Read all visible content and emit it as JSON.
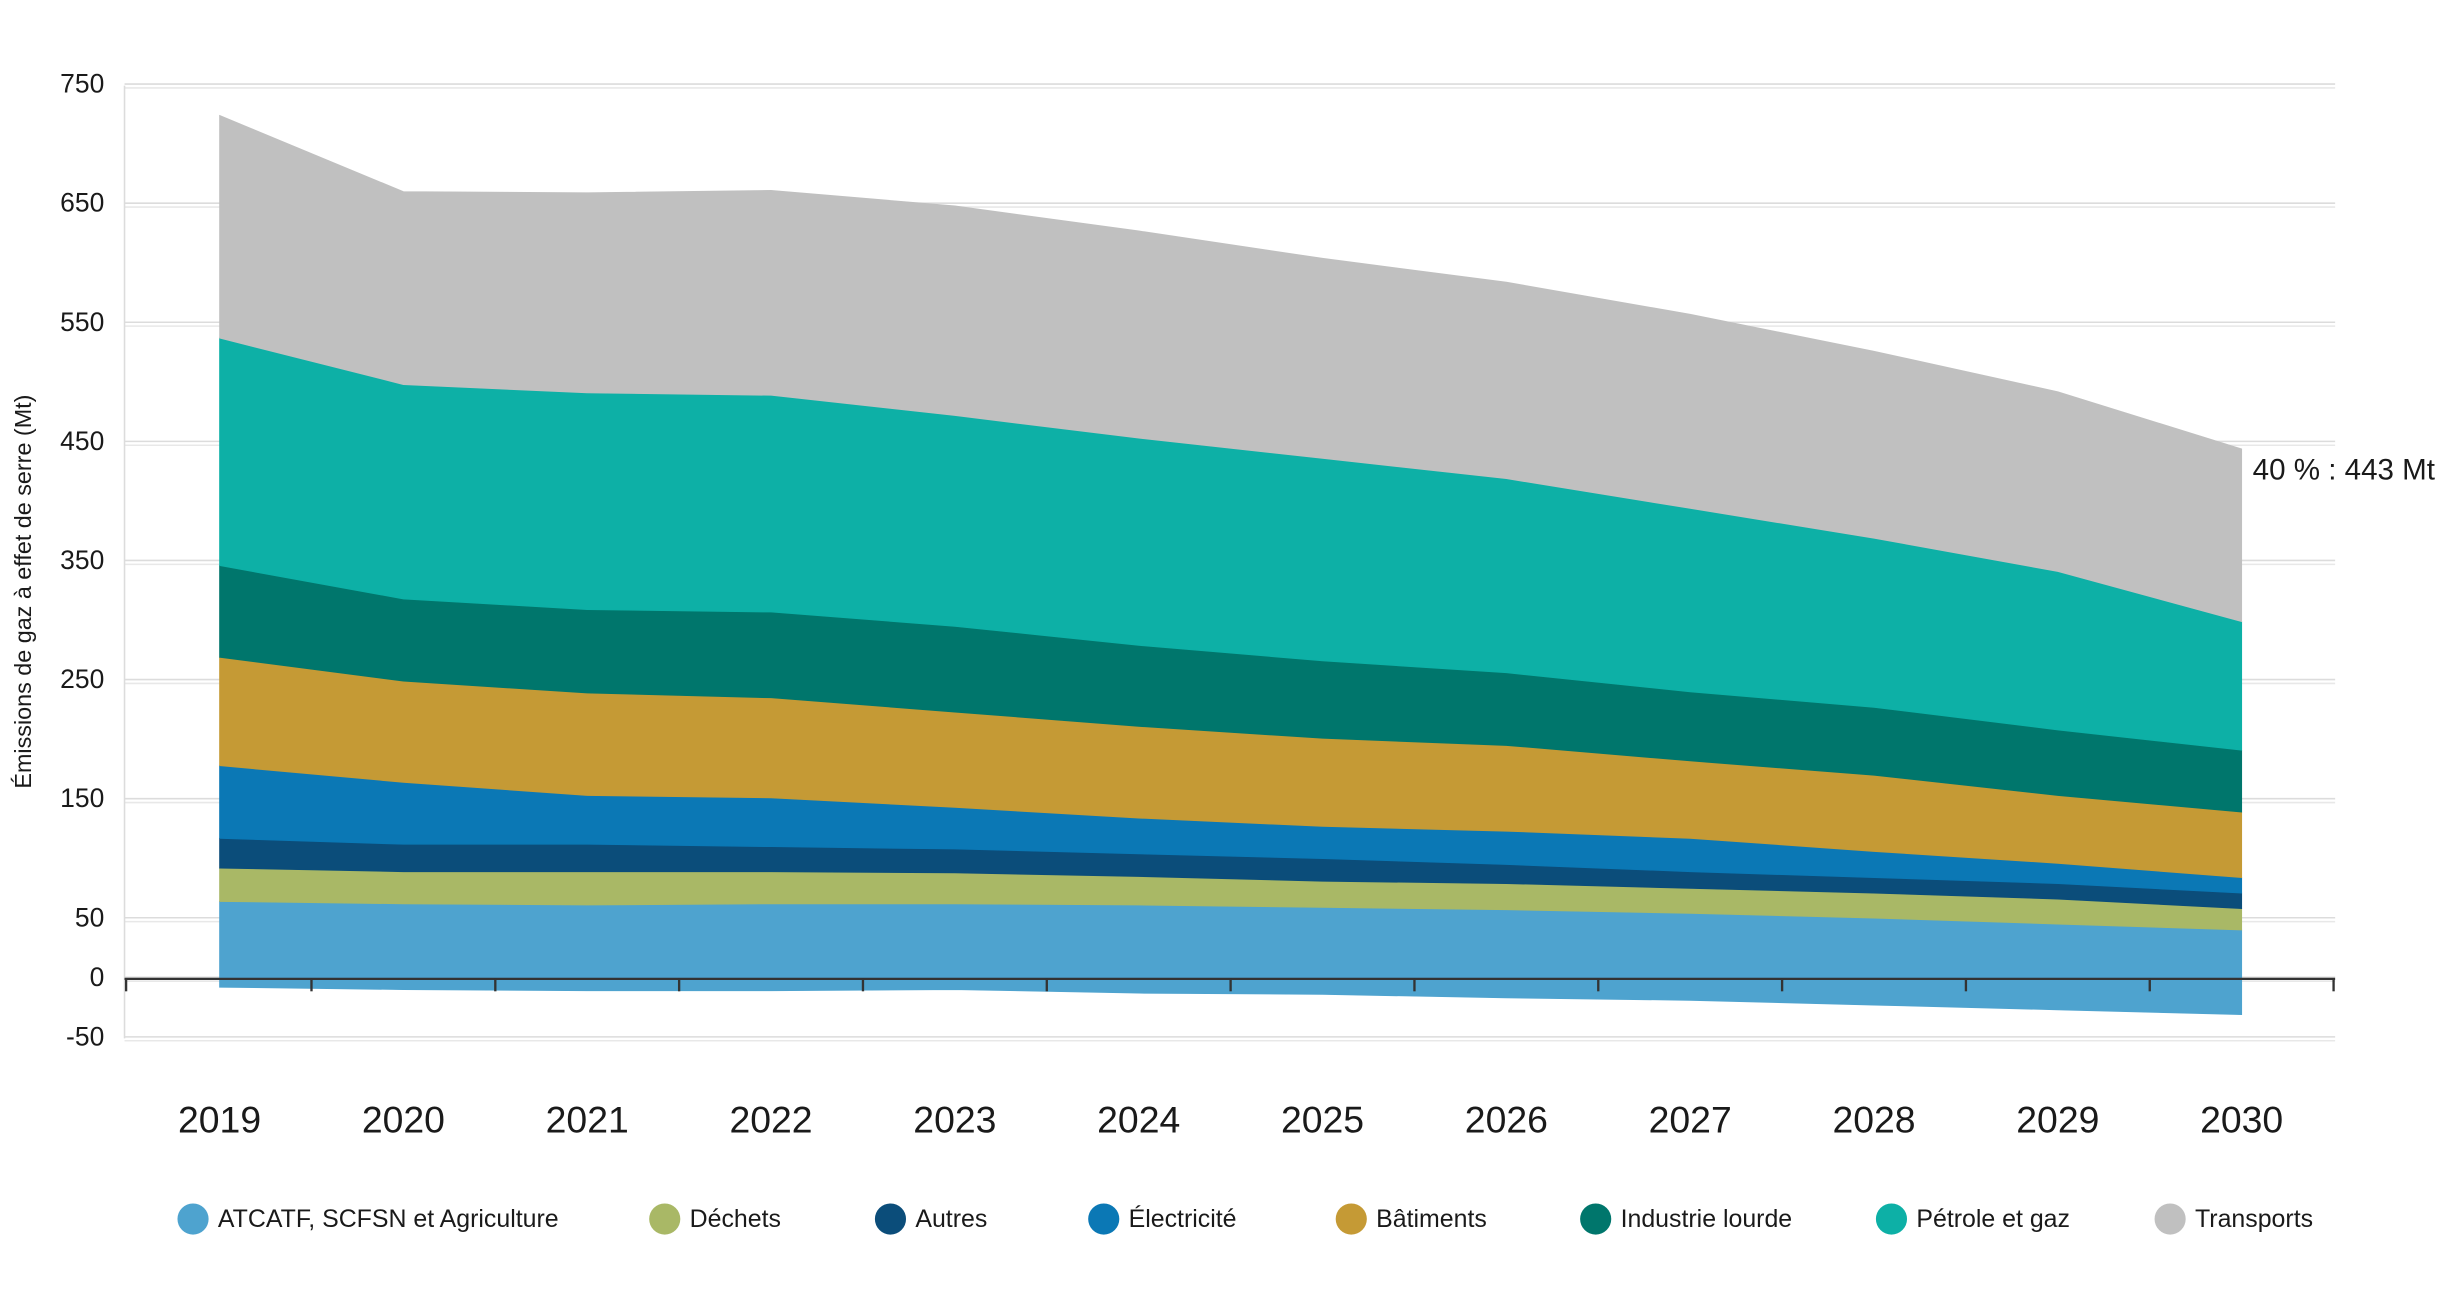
{
  "chart_data": {
    "type": "stacked_area",
    "y_label": "Émissions de gaz à effet de serre (Mt)",
    "x": [
      2019,
      2020,
      2021,
      2022,
      2023,
      2024,
      2025,
      2026,
      2027,
      2028,
      2029,
      2030
    ],
    "xlim": [
      2018.5,
      2030.5
    ],
    "xticks": [
      2019,
      2020,
      2021,
      2022,
      2023,
      2024,
      2025,
      2026,
      2027,
      2028,
      2029,
      2030
    ],
    "ylim": [
      -50,
      750
    ],
    "yticks": [
      -50,
      0,
      50,
      150,
      250,
      350,
      450,
      550,
      650,
      750
    ],
    "grid": true,
    "annotation": "40 % : 443 Mt",
    "series": [
      {
        "name": "ATCATF, SCFSN et Agriculture",
        "color": "#4ea3cf",
        "values": [
          -7,
          -9,
          -10,
          -10,
          -9,
          -12,
          -13,
          -16,
          -18,
          -22,
          -26,
          -30
        ]
      },
      {
        "name": "ATCATF, SCFSN et Agriculture",
        "color": "#4ea3cf",
        "values": [
          65,
          63,
          62,
          63,
          63,
          62,
          60,
          58,
          55,
          51,
          46,
          41
        ]
      },
      {
        "name": "Déchets",
        "color": "#a9b866",
        "values": [
          28,
          27,
          28,
          27,
          26,
          24,
          22,
          22,
          21,
          21,
          21,
          18
        ]
      },
      {
        "name": "Autres",
        "color": "#0b4d7a",
        "values": [
          25,
          23,
          23,
          21,
          20,
          19,
          19,
          16,
          14,
          13,
          13,
          13
        ]
      },
      {
        "name": "Électricité",
        "color": "#0b78b5",
        "values": [
          61,
          52,
          41,
          41,
          35,
          30,
          27,
          28,
          28,
          22,
          17,
          13
        ]
      },
      {
        "name": "Bâtiments",
        "color": "#c59a35",
        "values": [
          91,
          85,
          86,
          84,
          80,
          77,
          74,
          72,
          65,
          64,
          57,
          55
        ]
      },
      {
        "name": "Industrie lourde",
        "color": "#00766c",
        "values": [
          77,
          69,
          70,
          72,
          72,
          68,
          65,
          61,
          58,
          57,
          55,
          52
        ]
      },
      {
        "name": "Pétrole et gaz",
        "color": "#0db0a6",
        "values": [
          191,
          180,
          182,
          182,
          177,
          174,
          170,
          163,
          154,
          142,
          133,
          108
        ]
      },
      {
        "name": "Transports",
        "color": "#c0c0c0",
        "values": [
          187,
          162,
          168,
          172,
          176,
          174,
          168,
          165,
          163,
          157,
          151,
          145
        ]
      }
    ]
  }
}
